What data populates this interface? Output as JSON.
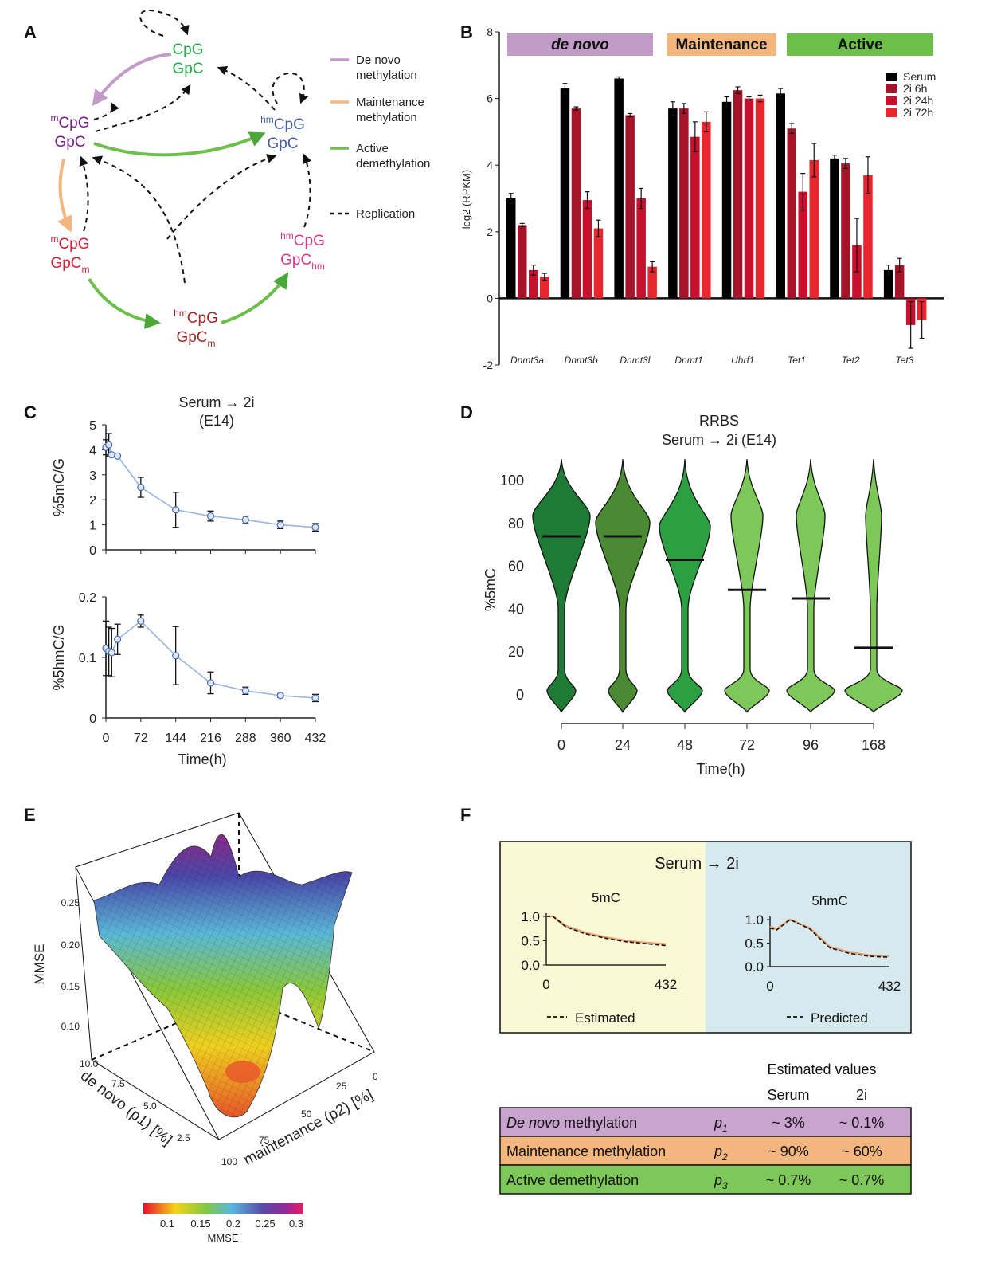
{
  "panels": {
    "a": "A",
    "b": "B",
    "c": "C",
    "d": "D",
    "e": "E",
    "f": "F"
  },
  "panel_a": {
    "nodes": [
      {
        "sup": "",
        "line1": "CpG",
        "line2": "GpC",
        "sub": "",
        "color": "#21a84a"
      },
      {
        "sup": "m",
        "line1": "CpG",
        "line2": "GpC",
        "sub": "",
        "color": "#7a1f8a"
      },
      {
        "sup": "hm",
        "line1": "CpG",
        "line2": "GpC",
        "sub": "",
        "color": "#4a5a9a"
      },
      {
        "sup": "m",
        "line1": "CpG",
        "line2": "GpC",
        "sub": "m",
        "color": "#d4213a"
      },
      {
        "sup": "hm",
        "line1": "CpG",
        "line2": "GpC",
        "sub": "hm",
        "color": "#d43a8a"
      },
      {
        "sup": "hm",
        "line1": "CpG",
        "line2": "GpC",
        "sub": "m",
        "color": "#9a2a2a"
      }
    ],
    "legend": [
      {
        "l1": "De novo",
        "l2": "methylation",
        "color": "#c39bc8"
      },
      {
        "l1": "Maintenance",
        "l2": "methylation",
        "color": "#f4b67f"
      },
      {
        "l1": "Active",
        "l2": "demethylation",
        "color": "#6cc04a"
      },
      {
        "l1": "Replication",
        "l2": "",
        "color": "#111111"
      }
    ]
  },
  "chart_data": [
    {
      "id": "B",
      "type": "bar",
      "ylabel": "log2 (RPKM)",
      "ylim": [
        -2,
        8
      ],
      "yticks": [
        "8",
        "6",
        "4",
        "2",
        "0",
        "-2"
      ],
      "groups": [
        {
          "label": "de novo",
          "color": "#c39bc8"
        },
        {
          "label": "Maintenance",
          "color": "#f4b67f"
        },
        {
          "label": "Active",
          "color": "#6cc04a"
        }
      ],
      "categories": [
        "Dnmt3a",
        "Dnmt3b",
        "Dnmt3l",
        "Dnmt1",
        "Uhrf1",
        "Tet1",
        "Tet2",
        "Tet3"
      ],
      "series": [
        {
          "name": "Serum",
          "color": "#000000",
          "values": [
            3.0,
            6.3,
            6.6,
            5.7,
            5.9,
            6.15,
            4.2,
            0.85
          ],
          "err": [
            0.15,
            0.15,
            0.05,
            0.2,
            0.15,
            0.15,
            0.1,
            0.15
          ]
        },
        {
          "name": "2i 6h",
          "color": "#a6142a",
          "values": [
            2.2,
            5.7,
            5.5,
            5.7,
            6.25,
            5.1,
            4.05,
            1.0
          ],
          "err": [
            0.05,
            0.05,
            0.05,
            0.15,
            0.1,
            0.15,
            0.15,
            0.2
          ]
        },
        {
          "name": "2i 24h",
          "color": "#c8102e",
          "values": [
            0.85,
            2.95,
            3.0,
            4.85,
            6.0,
            3.2,
            1.6,
            -0.8
          ],
          "err": [
            0.15,
            0.25,
            0.3,
            0.45,
            0.05,
            0.55,
            0.8,
            0.7
          ]
        },
        {
          "name": "2i 72h",
          "color": "#e8262e",
          "values": [
            0.65,
            2.1,
            0.95,
            5.3,
            6.0,
            4.15,
            3.7,
            -0.65
          ],
          "err": [
            0.1,
            0.25,
            0.15,
            0.3,
            0.1,
            0.5,
            0.55,
            0.55
          ]
        }
      ]
    },
    {
      "id": "C-top",
      "type": "line",
      "title": "Serum → 2i",
      "subtitle": "(E14)",
      "ylabel": "%5mC/G",
      "ylim": [
        0,
        5
      ],
      "yticks": [
        "0",
        "1",
        "2",
        "3",
        "4",
        "5"
      ],
      "xlim": [
        0,
        432
      ],
      "xticks": [
        "0",
        "72",
        "144",
        "216",
        "288",
        "360",
        "432"
      ],
      "x": [
        0,
        6,
        12,
        24,
        72,
        144,
        216,
        288,
        360,
        432
      ],
      "y": [
        4.1,
        4.2,
        3.8,
        3.75,
        2.5,
        1.6,
        1.35,
        1.2,
        1.0,
        0.9
      ],
      "err": [
        0.3,
        0.45,
        0.0,
        0.0,
        0.4,
        0.7,
        0.2,
        0.15,
        0.15,
        0.15
      ]
    },
    {
      "id": "C-bottom",
      "type": "line",
      "ylabel": "%5hmC/G",
      "ylim": [
        0,
        0.2
      ],
      "yticks": [
        "0",
        "0.1",
        "0.2"
      ],
      "xlabel": "Time(h)",
      "xlim": [
        0,
        432
      ],
      "xticks": [
        "0",
        "72",
        "144",
        "216",
        "288",
        "360",
        "432"
      ],
      "x": [
        0,
        6,
        12,
        24,
        72,
        144,
        216,
        288,
        360,
        432
      ],
      "y": [
        0.115,
        0.11,
        0.108,
        0.13,
        0.16,
        0.103,
        0.058,
        0.045,
        0.037,
        0.033
      ],
      "err": [
        0.045,
        0.04,
        0.04,
        0.025,
        0.01,
        0.048,
        0.018,
        0.006,
        0.003,
        0.006
      ]
    },
    {
      "id": "D",
      "type": "violin",
      "title": "RRBS",
      "subtitle": "Serum → 2i (E14)",
      "ylabel": "%5mC",
      "xlabel": "Time(h)",
      "ylim": [
        0,
        100
      ],
      "yticks": [
        "0",
        "20",
        "40",
        "60",
        "80",
        "100"
      ],
      "categories": [
        "0",
        "24",
        "48",
        "72",
        "96",
        "168"
      ],
      "medians": [
        74,
        74,
        63,
        49,
        45,
        22
      ],
      "colors": [
        "#1f7a35",
        "#4a8a32",
        "#2aa042",
        "#7ec85a",
        "#7ec85a",
        "#7ec85a"
      ]
    },
    {
      "id": "E",
      "type": "heatmap",
      "title": "3D surface",
      "zlabel": "MMSE",
      "zticks": [
        "0.10",
        "0.15",
        "0.20",
        "0.25"
      ],
      "xlabel": "de novo (p1) [%]",
      "xticks": [
        "10.0",
        "7.5",
        "5.0",
        "2.5"
      ],
      "ylabel": "maintenance (p2) [%]",
      "yticks": [
        "0",
        "25",
        "50",
        "75",
        "100"
      ],
      "colorbar": {
        "label": "MMSE",
        "ticks": [
          "0.1",
          "0.15",
          "0.2",
          "0.25",
          "0.3"
        ],
        "colors": [
          "#e8112a",
          "#f4d21a",
          "#7ec845",
          "#5ab8e0",
          "#5a4aa8",
          "#8a2a9a",
          "#e81a6a"
        ]
      }
    },
    {
      "id": "F-left",
      "type": "line",
      "title": "5mC",
      "xlim": [
        0,
        432
      ],
      "ylim": [
        0,
        1
      ],
      "xticks": [
        "0",
        "432"
      ],
      "yticks": [
        "1.0",
        "0.5",
        "0.0"
      ],
      "legend": "Estimated",
      "x": [
        0,
        24,
        72,
        144,
        216,
        288,
        360,
        432
      ],
      "estimated": [
        1.0,
        1.0,
        0.78,
        0.64,
        0.55,
        0.48,
        0.44,
        0.4
      ],
      "observed": [
        1.0,
        1.0,
        0.8,
        0.66,
        0.57,
        0.5,
        0.46,
        0.43
      ]
    },
    {
      "id": "F-right",
      "type": "line",
      "title": "5hmC",
      "xlim": [
        0,
        432
      ],
      "ylim": [
        0,
        1
      ],
      "xticks": [
        "0",
        "432"
      ],
      "yticks": [
        "1.0",
        "0.5",
        "0.0"
      ],
      "legend": "Predicted",
      "x": [
        0,
        24,
        72,
        144,
        216,
        288,
        360,
        432
      ],
      "predicted": [
        0.82,
        0.78,
        1.0,
        0.8,
        0.4,
        0.28,
        0.22,
        0.2
      ],
      "observed": [
        0.85,
        0.8,
        1.0,
        0.82,
        0.42,
        0.3,
        0.24,
        0.22
      ]
    }
  ],
  "panel_f": {
    "box_title": "Serum → 2i",
    "table_header": "Estimated values",
    "col_serum": "Serum",
    "col_2i": "2i",
    "rows": [
      {
        "label_em": "De novo",
        "label": " methylation",
        "p": "p",
        "psub": "1",
        "serum": "~ 3%",
        "twoi": "~ 0.1%",
        "color": "#c9a4cf"
      },
      {
        "label_em": "",
        "label": "Maintenance methylation",
        "p": "p",
        "psub": "2",
        "serum": "~ 90%",
        "twoi": "~ 60%",
        "color": "#f4b67f"
      },
      {
        "label_em": "",
        "label": "Active demethylation",
        "p": "p",
        "psub": "3",
        "serum": "~ 0.7%",
        "twoi": "~ 0.7%",
        "color": "#7ec85a"
      }
    ]
  }
}
